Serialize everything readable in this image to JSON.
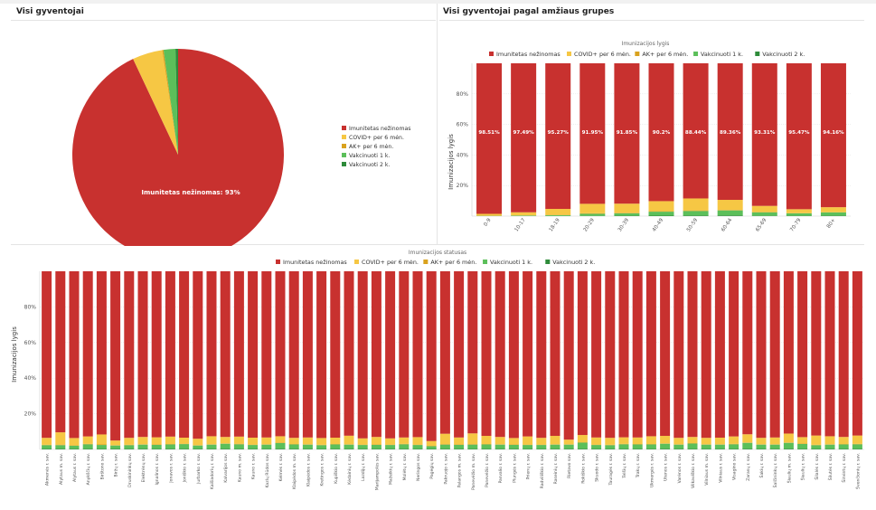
{
  "colors": {
    "unknown": "#c8312f",
    "covid": "#f6c744",
    "ak": "#d9a21e",
    "vacc1": "#5cbf5a",
    "vacc2": "#2e8b3a"
  },
  "top_left": {
    "title": "Visi gyventojai",
    "chart_data": {
      "type": "pie",
      "labels": [
        "Imunitetas nežinomas",
        "COVID+ per 6 mėn.",
        "AK+ per 6 mėn.",
        "Vakcinuoti 1 k.",
        "Vakcinuoti 2 k."
      ],
      "values": [
        93,
        4.6,
        0.2,
        1.8,
        0.4
      ],
      "slice_label": "Imunitetas nežinomas: 93%",
      "legend_position": "right"
    }
  },
  "top_right": {
    "title": "Visi gyventojai pagal amžiaus grupes",
    "chart_data": {
      "type": "bar",
      "stacked": true,
      "legend_title": "Imunizacijos lygis",
      "legend": [
        "Imunitetas nežinomas",
        "COVID+ per 6 mėn.",
        "AK+ per 6 mėn.",
        "Vakcinuoti 1 k.",
        "Vakcinuoti 2 k."
      ],
      "ylabel": "Imunizacijos lygis",
      "yticks": [
        "20%",
        "40%",
        "60%",
        "80%"
      ],
      "ylim": [
        0,
        100
      ],
      "categories": [
        "0-9",
        "10-17",
        "18-19",
        "20-29",
        "30-39",
        "40-49",
        "50-59",
        "60-64",
        "65-69",
        "70-79",
        "80+"
      ],
      "data_labels": [
        "98.51%",
        "97.49%",
        "95.27%",
        "91.95%",
        "91.85%",
        "90.2%",
        "88.44%",
        "89.36%",
        "93.31%",
        "95.47%",
        "94.16%"
      ],
      "series": [
        {
          "name": "Imunitetas nežinomas",
          "values": [
            98.51,
            97.49,
            95.27,
            91.95,
            91.85,
            90.2,
            88.44,
            89.36,
            93.31,
            95.47,
            94.16
          ]
        },
        {
          "name": "COVID+ per 6 mėn.",
          "values": [
            1.2,
            2.0,
            3.9,
            6.2,
            6.0,
            6.6,
            7.8,
            6.6,
            4.0,
            2.6,
            3.3
          ]
        },
        {
          "name": "AK+ per 6 mėn.",
          "values": [
            0.1,
            0.1,
            0.2,
            0.3,
            0.3,
            0.3,
            0.4,
            0.3,
            0.2,
            0.1,
            0.1
          ]
        },
        {
          "name": "Vakcinuoti 1 k.",
          "values": [
            0.15,
            0.35,
            0.55,
            1.4,
            1.6,
            2.6,
            3.0,
            3.3,
            2.3,
            1.6,
            2.2
          ]
        },
        {
          "name": "Vakcinuoti 2 k.",
          "values": [
            0.04,
            0.06,
            0.08,
            0.15,
            0.25,
            0.3,
            0.36,
            0.44,
            0.19,
            0.22,
            0.24
          ]
        }
      ]
    }
  },
  "bottom": {
    "chart_data": {
      "type": "bar",
      "stacked": true,
      "legend_title": "Imunizacijos statusas",
      "legend": [
        "Imunitetas nežinomas",
        "COVID+ per 6 mėn.",
        "AK+ per 6 mėn.",
        "Vakcinuoti 1 k.",
        "Vakcinuoti 2 k."
      ],
      "ylabel": "Imunizacijos lygis",
      "yticks": [
        "20%",
        "40%",
        "60%",
        "80%"
      ],
      "ylim": [
        0,
        100
      ],
      "categories": [
        "Akmenės r. sav.",
        "Alytaus m. sav.",
        "Alytaus r. sav.",
        "Anykščių r. sav.",
        "Birštono sav.",
        "Biržų r. sav.",
        "Druskininkų sav.",
        "Elektrėnų sav.",
        "Ignalinos r. sav.",
        "Jonavos r. sav.",
        "Joniškio r. sav.",
        "Jurbarko r. sav.",
        "Kaišiadorių r. sav.",
        "Kalvarijos sav.",
        "Kauno m. sav.",
        "Kauno r. sav.",
        "Kazlų Rūdos sav.",
        "Kėdainių r. sav.",
        "Kelmės r. sav.",
        "Klaipėdos m. sav.",
        "Klaipėdos r. sav.",
        "Kretingos r. sav.",
        "Kupiškio r. sav.",
        "Lazdijų r. sav.",
        "Marijampolės sav.",
        "Mažeikių r. sav.",
        "Molėtų r. sav.",
        "Neringos sav.",
        "Pagėgių sav.",
        "Pakruojo r. sav.",
        "Palangos m. sav.",
        "Panevėžio m. sav.",
        "Panevėžio r. sav.",
        "Pasvalio r. sav.",
        "Plungės r. sav.",
        "Prienų r. sav.",
        "Radviliškio r. sav.",
        "Raseinių r. sav.",
        "Rietavo sav.",
        "Rokiškio r. sav.",
        "Skuodo r. sav.",
        "Šakių r. sav.",
        "Šalčininkų r. sav.",
        "Šiaulių m. sav.",
        "Šiaulių r. sav.",
        "Šilalės r. sav.",
        "Šilutės r. sav.",
        "Širvintų r. sav.",
        "Švenčionių r. sav.",
        "Tauragės r. sav.",
        "Telšių r. sav.",
        "Trakų r. sav.",
        "Ukmergės r. sav.",
        "Utenos r. sav.",
        "Varėnos r. sav.",
        "Vilkaviškio r. sav.",
        "Vilniaus m. sav.",
        "Vilniaus r. sav.",
        "Visagino sav.",
        "Zarasų r. sav."
      ],
      "visible_tick_labels": [
        "Akmenės r. sav.",
        "Alytaus m. sav.",
        "Alytaus r. sav.",
        "Anykščių r. sav.",
        "Birštono sav.",
        "Biržų r. sav.",
        "Druskininkų sav.",
        "Elektrėnų sav.",
        "Ignalinos r. sav.",
        "Jonavos r. sav.",
        "Joniškio r. sav.",
        "Jurbarko r. sav.",
        "Kaišiadorių r. sav.",
        "Kalvarijos sav.",
        "Kauno m. sav.",
        "Kauno r. sav.",
        "Kazlų Rūdos sav.",
        "Kelmės r. sav.",
        "Klaipėdos m. sav.",
        "Klaipėdos r. sav.",
        "Kretingos r. sav.",
        "Kupiškio r. sav.",
        "Kėdainių r. sav.",
        "Lazdijų r. sav.",
        "Marijampolės sav.",
        "Mažeikių r. sav.",
        "Molėtų r. sav.",
        "Neringos sav.",
        "Pagėgių sav.",
        "Pakruojo r. sav.",
        "Palangos m. sav.",
        "Panevėžio m. sav.",
        "Panevėžio r. sav.",
        "Pasvalio r. sav.",
        "Plungės r. sav.",
        "Prienų r. sav.",
        "Radviliškio r. sav.",
        "Raseinių r. sav.",
        "Rietavo sav.",
        "Rokiškio r. sav.",
        "Skuodo r. sav.",
        "Tauragės r. sav.",
        "Telšių r. sav.",
        "Trakų r. sav.",
        "Ukmergės r. sav.",
        "Utenos r. sav.",
        "Varėnos r. sav.",
        "Vilkaviškio r. sav.",
        "Vilniaus m. sav.",
        "Vilniaus r. sav.",
        "Visagino sav.",
        "Zarasų r. sav.",
        "Šakių r. sav.",
        "Šalčininkų r. sav.",
        "Šiaulių m. sav.",
        "Šiaulių r. sav.",
        "Šilalės r. sav.",
        "Šilutės r. sav.",
        "Širvintų r. sav.",
        "Švenčionių r. sav."
      ],
      "series": [
        {
          "name": "Imunitetas nežinomas",
          "values": [
            93.5,
            90.4,
            93.6,
            92.7,
            91.6,
            95.0,
            93.5,
            93.0,
            93.2,
            92.8,
            93.4,
            94.0,
            92.6,
            93.0,
            92.8,
            93.4,
            93.3,
            92.6,
            93.5,
            93.3,
            93.6,
            93.4,
            92.3,
            93.8,
            93.0,
            93.8,
            93.3,
            93.1,
            95.3,
            91.2,
            93.3,
            91.0,
            92.4,
            93.0,
            93.6,
            92.7,
            93.5,
            92.4,
            94.5,
            91.9,
            93.3,
            93.5,
            93.2,
            93.3,
            92.6,
            92.4,
            93.5,
            93.0,
            93.5,
            93.4,
            92.7,
            91.5,
            93.5,
            93.3,
            91.1,
            93.1,
            92.2,
            92.6,
            93.0,
            92.2
          ]
        },
        {
          "name": "COVID+ per 6 mėn.",
          "values": [
            3.9,
            6.9,
            4.1,
            4.2,
            5.6,
            2.6,
            3.9,
            4.1,
            4.0,
            4.2,
            3.4,
            3.6,
            4.5,
            3.6,
            4.0,
            3.9,
            3.8,
            3.6,
            3.5,
            3.8,
            3.8,
            3.6,
            4.8,
            3.5,
            4.2,
            3.5,
            3.6,
            4.2,
            2.7,
            5.8,
            3.9,
            6.0,
            4.6,
            4.1,
            3.6,
            4.6,
            3.8,
            4.7,
            2.6,
            4.1,
            4.0,
            3.9,
            3.7,
            3.7,
            4.4,
            4.2,
            3.6,
            3.5,
            3.6,
            3.7,
            4.2,
            4.6,
            3.6,
            3.8,
            5.0,
            3.6,
            5.2,
            4.5,
            4.0,
            4.7
          ]
        },
        {
          "name": "AK+ per 6 mėn.",
          "values": [
            0.2,
            0.3,
            0.2,
            0.2,
            0.3,
            0.2,
            0.2,
            0.2,
            0.2,
            0.2,
            0.2,
            0.2,
            0.2,
            0.2,
            0.3,
            0.2,
            0.2,
            0.2,
            0.2,
            0.2,
            0.2,
            0.2,
            0.2,
            0.2,
            0.2,
            0.2,
            0.2,
            0.2,
            0.2,
            0.3,
            0.2,
            0.3,
            0.2,
            0.2,
            0.2,
            0.2,
            0.2,
            0.2,
            0.2,
            0.2,
            0.2,
            0.2,
            0.2,
            0.2,
            0.2,
            0.2,
            0.2,
            0.2,
            0.2,
            0.2,
            0.2,
            0.2,
            0.2,
            0.2,
            0.2,
            0.2,
            0.2,
            0.2,
            0.2,
            0.2
          ]
        },
        {
          "name": "Vakcinuoti 1 k.",
          "values": [
            2.0,
            2.0,
            1.8,
            2.6,
            2.2,
            1.8,
            2.1,
            2.3,
            2.3,
            2.4,
            2.7,
            1.9,
            2.4,
            2.8,
            2.6,
            2.2,
            2.4,
            3.2,
            2.5,
            2.4,
            2.1,
            2.5,
            2.4,
            2.2,
            2.3,
            2.2,
            2.6,
            2.2,
            1.5,
            2.4,
            2.3,
            2.4,
            2.5,
            2.4,
            2.3,
            2.2,
            2.2,
            2.4,
            2.4,
            3.4,
            2.2,
            2.1,
            2.6,
            2.5,
            2.5,
            2.8,
            2.4,
            3.0,
            2.4,
            2.4,
            2.6,
            3.3,
            2.4,
            2.4,
            3.3,
            2.8,
            2.1,
            2.4,
            2.5,
            2.6
          ]
        },
        {
          "name": "Vakcinuoti 2 k.",
          "values": [
            0.4,
            0.4,
            0.3,
            0.3,
            0.3,
            0.4,
            0.3,
            0.4,
            0.3,
            0.4,
            0.3,
            0.3,
            0.3,
            0.4,
            0.3,
            0.3,
            0.3,
            0.4,
            0.3,
            0.3,
            0.3,
            0.3,
            0.3,
            0.3,
            0.3,
            0.3,
            0.3,
            0.3,
            0.3,
            0.3,
            0.3,
            0.3,
            0.3,
            0.3,
            0.3,
            0.3,
            0.3,
            0.3,
            0.3,
            0.4,
            0.3,
            0.3,
            0.3,
            0.3,
            0.3,
            0.4,
            0.3,
            0.3,
            0.3,
            0.3,
            0.3,
            0.4,
            0.3,
            0.3,
            0.4,
            0.3,
            0.3,
            0.3,
            0.3,
            0.3
          ]
        }
      ]
    }
  }
}
